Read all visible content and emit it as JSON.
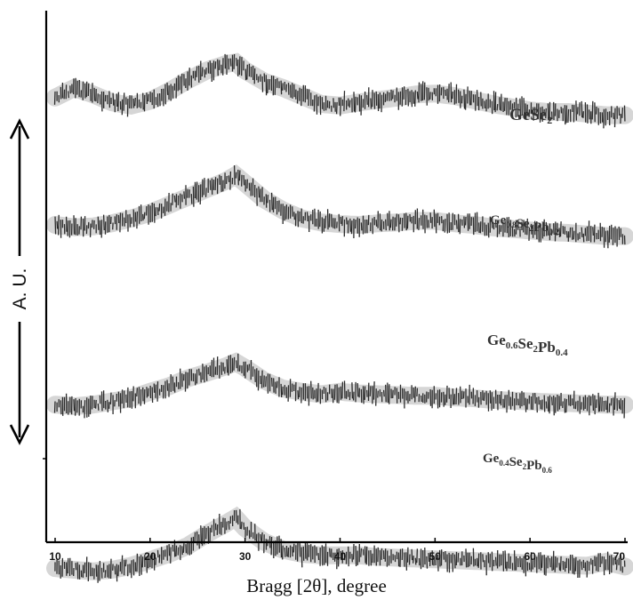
{
  "chart_data": {
    "type": "line",
    "xlabel": "Bragg [2θ], degree",
    "ylabel": "A. U.",
    "xlim": [
      10,
      70
    ],
    "x_ticks": [
      10,
      20,
      30,
      40,
      50,
      60,
      70
    ],
    "grid": false,
    "legend": "none",
    "series": [
      {
        "name": "GeSe2",
        "label_parts": [
          [
            "Ge",
            ""
          ],
          [
            "Se",
            "2"
          ]
        ],
        "x": [
          10,
          12,
          14,
          16,
          18,
          20,
          22,
          24,
          26,
          28,
          29,
          30,
          32,
          34,
          36,
          38,
          40,
          42,
          44,
          46,
          48,
          50,
          52,
          54,
          56,
          58,
          60,
          62,
          64,
          66,
          68,
          70
        ],
        "y": [
          0.78,
          0.9,
          0.82,
          0.72,
          0.68,
          0.74,
          0.86,
          1.0,
          1.12,
          1.2,
          1.22,
          1.12,
          0.98,
          0.9,
          0.8,
          0.7,
          0.68,
          0.72,
          0.75,
          0.78,
          0.82,
          0.83,
          0.8,
          0.75,
          0.7,
          0.66,
          0.62,
          0.6,
          0.6,
          0.58,
          0.56,
          0.56
        ]
      },
      {
        "name": "Ge0.8Se2Pb0.2",
        "label_parts": [
          [
            "Ge",
            "0.8"
          ],
          [
            "Se",
            "2"
          ],
          [
            "Pb",
            "0.2"
          ]
        ],
        "x": [
          10,
          12,
          14,
          16,
          18,
          20,
          22,
          24,
          26,
          28,
          29,
          30,
          32,
          34,
          36,
          38,
          40,
          42,
          44,
          46,
          48,
          50,
          52,
          54,
          56,
          58,
          60,
          62,
          64,
          66,
          68,
          70
        ],
        "y": [
          0.3,
          0.27,
          0.28,
          0.32,
          0.38,
          0.45,
          0.55,
          0.65,
          0.75,
          0.85,
          0.92,
          0.82,
          0.62,
          0.48,
          0.38,
          0.33,
          0.31,
          0.3,
          0.32,
          0.33,
          0.35,
          0.35,
          0.32,
          0.3,
          0.27,
          0.25,
          0.23,
          0.21,
          0.2,
          0.18,
          0.16,
          0.16
        ]
      },
      {
        "name": "Ge0.6Se2Pb0.4",
        "label_parts": [
          [
            "Ge",
            "0.6"
          ],
          [
            "Se",
            "2"
          ],
          [
            "Pb",
            "0.4"
          ]
        ],
        "x": [
          10,
          12,
          14,
          16,
          18,
          20,
          22,
          24,
          26,
          28,
          29,
          30,
          32,
          34,
          36,
          38,
          40,
          42,
          44,
          46,
          48,
          50,
          52,
          54,
          56,
          58,
          60,
          62,
          64,
          66,
          68,
          70
        ],
        "y": [
          -0.28,
          -0.3,
          -0.28,
          -0.24,
          -0.2,
          -0.12,
          -0.05,
          0.05,
          0.12,
          0.2,
          0.25,
          0.18,
          0.02,
          -0.08,
          -0.12,
          -0.15,
          -0.12,
          -0.14,
          -0.15,
          -0.16,
          -0.17,
          -0.17,
          -0.19,
          -0.2,
          -0.22,
          -0.23,
          -0.24,
          -0.25,
          -0.26,
          -0.27,
          -0.28,
          -0.28
        ]
      },
      {
        "name": "Ge0.4Se2Pb0.6",
        "label_parts": [
          [
            "Ge",
            "0.4"
          ],
          [
            "Se",
            "2"
          ],
          [
            "Pb",
            "0.6"
          ]
        ],
        "x": [
          10,
          12,
          14,
          16,
          18,
          20,
          22,
          24,
          26,
          28,
          29,
          30,
          32,
          34,
          36,
          38,
          40,
          42,
          44,
          46,
          48,
          50,
          52,
          54,
          56,
          58,
          60,
          62,
          64,
          66,
          68,
          70
        ],
        "y": [
          -0.88,
          -0.9,
          -0.92,
          -0.9,
          -0.85,
          -0.78,
          -0.7,
          -0.6,
          -0.45,
          -0.32,
          -0.25,
          -0.38,
          -0.55,
          -0.65,
          -0.7,
          -0.72,
          -0.72,
          -0.72,
          -0.74,
          -0.75,
          -0.76,
          -0.77,
          -0.78,
          -0.79,
          -0.8,
          -0.81,
          -0.82,
          -0.83,
          -0.84,
          -0.85,
          -0.8,
          -0.86
        ]
      }
    ]
  },
  "colors": {
    "trace": "#2a2a2a",
    "band": "#d6d6d6",
    "axis": "#000000"
  }
}
